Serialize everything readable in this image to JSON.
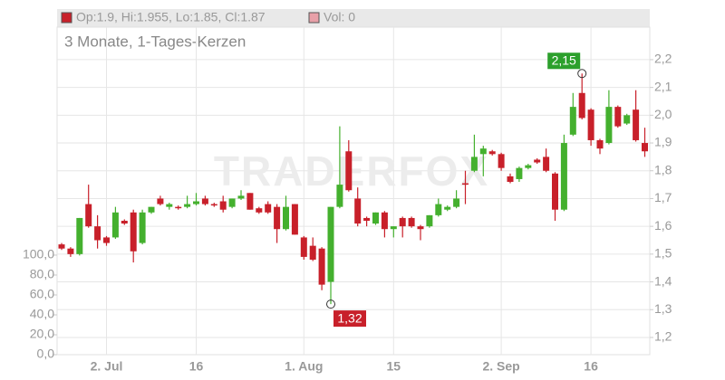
{
  "chart_data": {
    "type": "candlestick",
    "subtitle": "3 Monate, 1-Tages-Kerzen",
    "legend": [
      "Op:1.9, Hi:1.955, Lo:1.85, Cl:1.87",
      "Vol: 0"
    ],
    "watermark": "TRADERFOX",
    "up_color": "#44b02e",
    "down_color": "#c8202a",
    "categories": [
      null,
      null,
      null,
      null,
      null,
      "2. Jul",
      null,
      null,
      null,
      null,
      null,
      null,
      null,
      null,
      null,
      "16",
      null,
      null,
      null,
      null,
      null,
      null,
      null,
      null,
      null,
      null,
      null,
      "1. Aug",
      null,
      null,
      null,
      null,
      null,
      null,
      null,
      null,
      null,
      "15",
      null,
      null,
      null,
      null,
      null,
      null,
      null,
      null,
      null,
      null,
      null,
      "2. Sep",
      null,
      null,
      null,
      null,
      null,
      null,
      null,
      null,
      null,
      "16",
      null,
      null,
      null,
      null,
      null,
      null
    ],
    "open": [
      1.535,
      1.52,
      1.5,
      1.68,
      1.6,
      1.56,
      1.56,
      1.62,
      1.65,
      1.54,
      1.65,
      1.7,
      1.67,
      1.67,
      1.67,
      1.68,
      1.7,
      1.68,
      1.69,
      1.67,
      1.7,
      1.72,
      1.665,
      1.68,
      1.67,
      1.59,
      1.68,
      1.56,
      1.53,
      1.52,
      1.4,
      1.67,
      1.87,
      1.7,
      1.63,
      1.61,
      1.65,
      1.59,
      1.63,
      1.63,
      1.6,
      1.6,
      1.64,
      1.66,
      1.67,
      1.755,
      1.8,
      1.86,
      1.87,
      1.86,
      1.78,
      1.77,
      1.81,
      1.84,
      1.85,
      1.79,
      1.66,
      1.93,
      2.08,
      2.02,
      1.91,
      1.9,
      2.03,
      1.97,
      2.02,
      1.9
    ],
    "high": [
      1.54,
      1.525,
      1.63,
      1.75,
      1.64,
      1.565,
      1.67,
      1.625,
      1.66,
      1.66,
      1.67,
      1.71,
      1.685,
      1.675,
      1.71,
      1.72,
      1.71,
      1.685,
      1.71,
      1.7,
      1.73,
      1.72,
      1.67,
      1.69,
      1.68,
      1.71,
      1.68,
      1.565,
      1.56,
      1.525,
      1.67,
      1.96,
      1.91,
      1.74,
      1.635,
      1.65,
      1.655,
      1.6,
      1.635,
      1.635,
      1.605,
      1.64,
      1.7,
      1.675,
      1.73,
      1.8,
      1.93,
      1.89,
      1.875,
      1.865,
      1.79,
      1.815,
      1.825,
      1.845,
      1.88,
      1.795,
      1.93,
      2.08,
      2.15,
      2.025,
      1.915,
      2.09,
      2.035,
      2.005,
      2.09,
      1.955
    ],
    "low": [
      1.515,
      1.49,
      1.495,
      1.595,
      1.52,
      1.53,
      1.555,
      1.605,
      1.47,
      1.535,
      1.645,
      1.675,
      1.66,
      1.66,
      1.665,
      1.675,
      1.675,
      1.67,
      1.65,
      1.665,
      1.695,
      1.66,
      1.645,
      1.645,
      1.54,
      1.585,
      1.57,
      1.48,
      1.475,
      1.37,
      1.32,
      1.665,
      1.725,
      1.6,
      1.6,
      1.605,
      1.56,
      1.56,
      1.56,
      1.595,
      1.55,
      1.595,
      1.635,
      1.655,
      1.665,
      1.68,
      1.795,
      1.78,
      1.855,
      1.8,
      1.755,
      1.76,
      1.805,
      1.825,
      1.795,
      1.62,
      1.655,
      1.925,
      1.985,
      1.89,
      1.86,
      1.895,
      1.955,
      1.965,
      1.905,
      1.85
    ],
    "close": [
      1.52,
      1.5,
      1.63,
      1.6,
      1.55,
      1.54,
      1.65,
      1.61,
      1.51,
      1.65,
      1.67,
      1.68,
      1.68,
      1.665,
      1.68,
      1.69,
      1.68,
      1.675,
      1.66,
      1.7,
      1.71,
      1.66,
      1.65,
      1.65,
      1.59,
      1.67,
      1.57,
      1.49,
      1.48,
      1.39,
      1.67,
      1.75,
      1.73,
      1.61,
      1.62,
      1.65,
      1.59,
      1.6,
      1.6,
      1.6,
      1.59,
      1.64,
      1.68,
      1.67,
      1.7,
      1.75,
      1.85,
      1.88,
      1.86,
      1.81,
      1.76,
      1.81,
      1.82,
      1.83,
      1.8,
      1.66,
      1.9,
      2.03,
      1.99,
      1.91,
      1.88,
      2.03,
      1.96,
      2.0,
      1.91,
      1.87
    ],
    "annotations": [
      {
        "label": "2,15",
        "index": 58,
        "value": 2.15,
        "color": "#2ca02c"
      },
      {
        "label": "1,32",
        "index": 30,
        "value": 1.32,
        "color": "#c8202a"
      }
    ],
    "ylim": [
      1.138,
      2.317
    ],
    "yticks": [
      {
        "value": 1.2,
        "label": "1,2"
      },
      {
        "value": 1.3,
        "label": "1,3"
      },
      {
        "value": 1.4,
        "label": "1,4"
      },
      {
        "value": 1.5,
        "label": "1,5"
      },
      {
        "value": 1.6,
        "label": "1,6"
      },
      {
        "value": 1.7,
        "label": "1,7"
      },
      {
        "value": 1.8,
        "label": "1,8"
      },
      {
        "value": 1.9,
        "label": "1,9"
      },
      {
        "value": 2.0,
        "label": "2,0"
      },
      {
        "value": 2.1,
        "label": "2,1"
      },
      {
        "value": 2.2,
        "label": "2,2"
      }
    ],
    "y2lim": [
      0,
      329
    ],
    "y2ticks": [
      {
        "value": 0,
        "label": "0,0"
      },
      {
        "value": 20,
        "label": "20,0"
      },
      {
        "value": 40,
        "label": "40,0"
      },
      {
        "value": 60,
        "label": "60,0"
      },
      {
        "value": 80,
        "label": "80,0"
      },
      {
        "value": 100,
        "label": "100,0"
      }
    ],
    "grid": true
  }
}
